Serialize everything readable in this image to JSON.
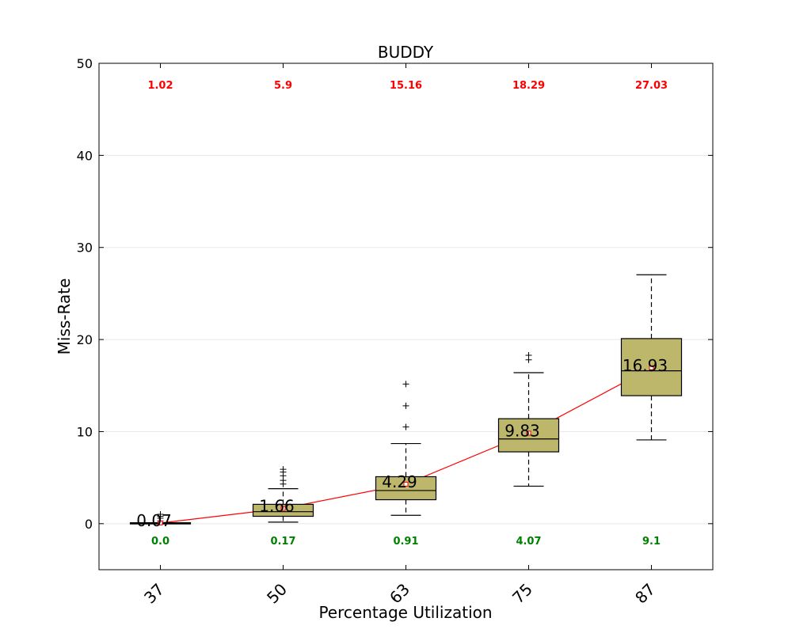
{
  "chart_data": {
    "type": "box",
    "title": "BUDDY",
    "xlabel": "Percentage Utilization",
    "ylabel": "Miss-Rate",
    "ylim": [
      -5,
      50
    ],
    "yticks": [
      0,
      10,
      20,
      30,
      40,
      50
    ],
    "grid": "horizontal",
    "colors": {
      "box_fill": "#bdb76b",
      "mean_line": "#ff0000",
      "max_label": "#ff0000",
      "min_label": "#008000",
      "grid": "#e8e8e8"
    },
    "categories": [
      "37",
      "50",
      "63",
      "75",
      "87"
    ],
    "boxes": [
      {
        "category": "37",
        "whisker_low": 0.0,
        "q1": 0.0,
        "median": 0.05,
        "q3": 0.1,
        "whisker_high": 0.1,
        "mean": 0.07,
        "mean_label": "0.07",
        "outliers": [
          0.3,
          0.6,
          0.8,
          1.02
        ],
        "max_label": "1.02",
        "min_label": "0.0"
      },
      {
        "category": "50",
        "whisker_low": 0.17,
        "q1": 0.8,
        "median": 1.3,
        "q3": 2.1,
        "whisker_high": 3.8,
        "mean": 1.66,
        "mean_label": "1.66",
        "outliers": [
          4.3,
          4.7,
          5.2,
          5.6,
          5.9
        ],
        "max_label": "5.9",
        "min_label": "0.17"
      },
      {
        "category": "63",
        "whisker_low": 0.91,
        "q1": 2.6,
        "median": 3.6,
        "q3": 5.1,
        "whisker_high": 8.7,
        "mean": 4.29,
        "mean_label": "4.29",
        "outliers": [
          10.5,
          12.8,
          15.16
        ],
        "max_label": "15.16",
        "min_label": "0.91"
      },
      {
        "category": "75",
        "whisker_low": 4.07,
        "q1": 7.8,
        "median": 9.2,
        "q3": 11.4,
        "whisker_high": 16.4,
        "mean": 9.83,
        "mean_label": "9.83",
        "outliers": [
          17.8,
          18.29
        ],
        "max_label": "18.29",
        "min_label": "4.07"
      },
      {
        "category": "87",
        "whisker_low": 9.1,
        "q1": 13.9,
        "median": 16.6,
        "q3": 20.1,
        "whisker_high": 27.03,
        "mean": 16.93,
        "mean_label": "16.93",
        "outliers": [],
        "max_label": "27.03",
        "min_label": "9.1"
      }
    ]
  }
}
